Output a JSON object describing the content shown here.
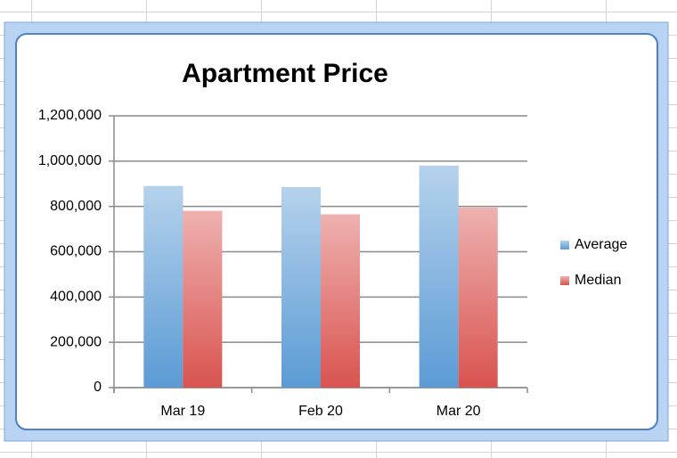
{
  "chart_data": {
    "type": "bar",
    "title": "Apartment Price",
    "categories": [
      "Mar 19",
      "Feb 20",
      "Mar 20"
    ],
    "series": [
      {
        "name": "Average",
        "color": "#5b9bd5",
        "values": [
          890000,
          885000,
          980000
        ]
      },
      {
        "name": "Median",
        "color": "#d9534f",
        "values": [
          780000,
          765000,
          795000
        ]
      }
    ],
    "ylim": [
      0,
      1200000
    ],
    "yticks": [
      0,
      {
        "value": 200000,
        "label": "200,000"
      },
      {
        "value": 400000,
        "label": "400,000"
      },
      {
        "value": 600000,
        "label": "600,000"
      },
      {
        "value": 800000,
        "label": "800,000"
      },
      {
        "value": 1000000,
        "label": "1,000,000"
      },
      {
        "value": 1200000,
        "label": "1,200,000"
      }
    ],
    "grid": true,
    "legend": "right"
  }
}
